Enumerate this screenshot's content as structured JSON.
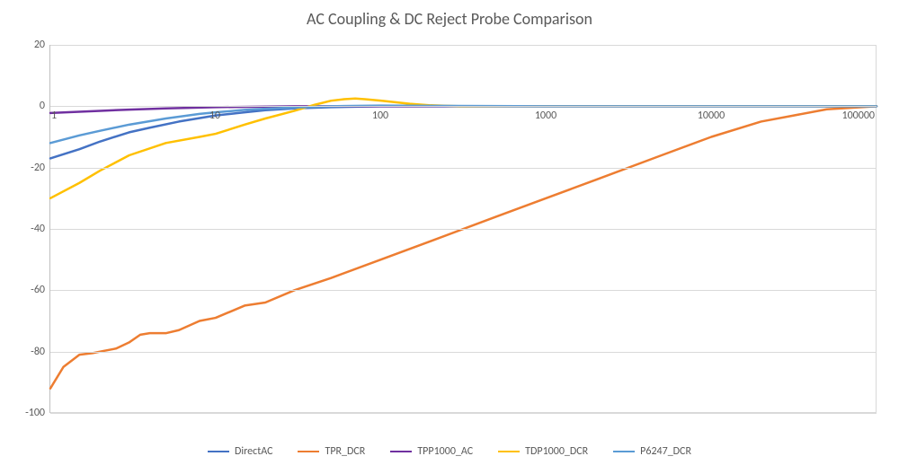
{
  "chart": {
    "type": "line",
    "title": "AC Coupling & DC Reject Probe Comparison",
    "title_fontsize": 18,
    "title_color": "#595959",
    "background_color": "#ffffff",
    "plot_border_color": "#d9d9d9",
    "axis_line_color": "#bfbfbf",
    "grid_color": "#d9d9d9",
    "tick_fontsize": 12,
    "tick_color": "#595959",
    "line_width": 2.5,
    "x_scale": "log",
    "xlim": [
      1,
      100000
    ],
    "x_ticks": [
      1,
      10,
      100,
      1000,
      10000,
      100000
    ],
    "x_tick_labels": [
      "1",
      "10",
      "100",
      "1000",
      "10000",
      "100000"
    ],
    "y_scale": "linear",
    "ylim": [
      -100,
      20
    ],
    "y_ticks": [
      -100,
      -80,
      -60,
      -40,
      -20,
      0,
      20
    ],
    "y_tick_labels": [
      "-100",
      "-80",
      "-60",
      "-40",
      "-20",
      "0",
      "20"
    ],
    "x_axis_at_y": 0,
    "legend_position": "bottom",
    "series": [
      {
        "name": "DirectAC",
        "color": "#4472c4",
        "x": [
          1,
          1.5,
          2,
          3,
          4,
          6,
          10,
          15,
          20,
          30,
          50,
          100,
          1000,
          100000
        ],
        "y": [
          -17,
          -14,
          -11.5,
          -8.5,
          -7,
          -5,
          -3,
          -2,
          -1.3,
          -0.7,
          -0.3,
          0,
          0,
          0
        ]
      },
      {
        "name": "TPR_DCR",
        "color": "#ed7d31",
        "x": [
          1,
          1.2,
          1.5,
          1.8,
          2,
          2.5,
          3,
          3.5,
          4,
          5,
          6,
          8,
          10,
          15,
          20,
          30,
          50,
          100,
          200,
          500,
          1000,
          2000,
          5000,
          10000,
          20000,
          50000,
          100000
        ],
        "y": [
          -92,
          -85,
          -81,
          -80.5,
          -80,
          -79,
          -77,
          -74.5,
          -74,
          -74,
          -73,
          -70,
          -69,
          -65,
          -64,
          -60,
          -56,
          -50,
          -44,
          -36,
          -30,
          -24,
          -16,
          -10,
          -5,
          -1,
          0
        ]
      },
      {
        "name": "TPP1000_AC",
        "color": "#7030a0",
        "x": [
          1,
          2,
          3,
          5,
          10,
          30,
          100,
          100000
        ],
        "y": [
          -2.2,
          -1.5,
          -1.1,
          -0.7,
          -0.3,
          0,
          0,
          0
        ]
      },
      {
        "name": "TDP1000_DCR",
        "color": "#ffc000",
        "x": [
          1,
          1.5,
          2,
          3,
          5,
          8,
          10,
          15,
          20,
          30,
          40,
          50,
          60,
          70,
          80,
          100,
          150,
          200,
          300,
          1000,
          100000
        ],
        "y": [
          -30,
          -25,
          -21,
          -16,
          -12,
          -10,
          -9,
          -6,
          -4,
          -1.5,
          0.5,
          1.8,
          2.3,
          2.5,
          2.3,
          1.8,
          0.8,
          0.3,
          0,
          0,
          0
        ]
      },
      {
        "name": "P6247_DCR",
        "color": "#5b9bd5",
        "x": [
          1,
          1.5,
          2,
          3,
          5,
          8,
          10,
          15,
          20,
          30,
          50,
          100,
          1000,
          100000
        ],
        "y": [
          -12,
          -9.5,
          -8,
          -6,
          -4,
          -2.5,
          -2,
          -1.2,
          -0.8,
          -0.4,
          0,
          0.2,
          0,
          0
        ]
      }
    ]
  }
}
